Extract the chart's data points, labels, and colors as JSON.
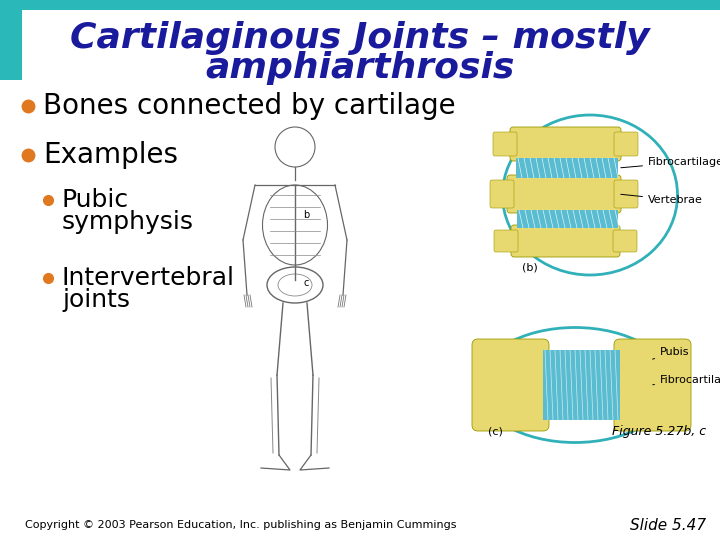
{
  "title_line1": "Cartilaginous Joints – mostly",
  "title_line2": "amphiarthrosis",
  "title_color": "#1a1a9c",
  "title_fontsize": 26,
  "bullet_color": "#e07820",
  "bullet1_text": "Bones connected by cartilage",
  "bullet1_fontsize": 20,
  "bullet2_text": "Examples",
  "bullet2_fontsize": 20,
  "sub_bullet1_line1": "Pubic",
  "sub_bullet1_line2": "symphysis",
  "sub_bullet2_line1": "Intervertebral",
  "sub_bullet2_line2": "joints",
  "sub_fontsize": 18,
  "fig_label_b": "(b)",
  "fig_label_c": "(c)",
  "fig_caption": "Figure 5.27b, c",
  "fig_caption_fontsize": 9,
  "copyright_text": "Copyright © 2003 Pearson Education, Inc. publishing as Benjamin Cummings",
  "slide_number": "Slide 5.47",
  "footer_fontsize": 8,
  "background_color": "#ffffff",
  "top_border_color": "#2ab8b8",
  "left_border_color": "#2ab8b8",
  "label_fibrocartilage_b": "Fibrocartilage",
  "label_vertebrae": "Vertebrae",
  "label_pubis": "Pubis",
  "label_fibrocartilage_c": "Fibrocartilage",
  "diagram_color_yellow": "#e8d870",
  "diagram_color_blue": "#5abcd0",
  "diagram_color_circle": "#30b0b8",
  "diagram_label_fontsize": 8
}
